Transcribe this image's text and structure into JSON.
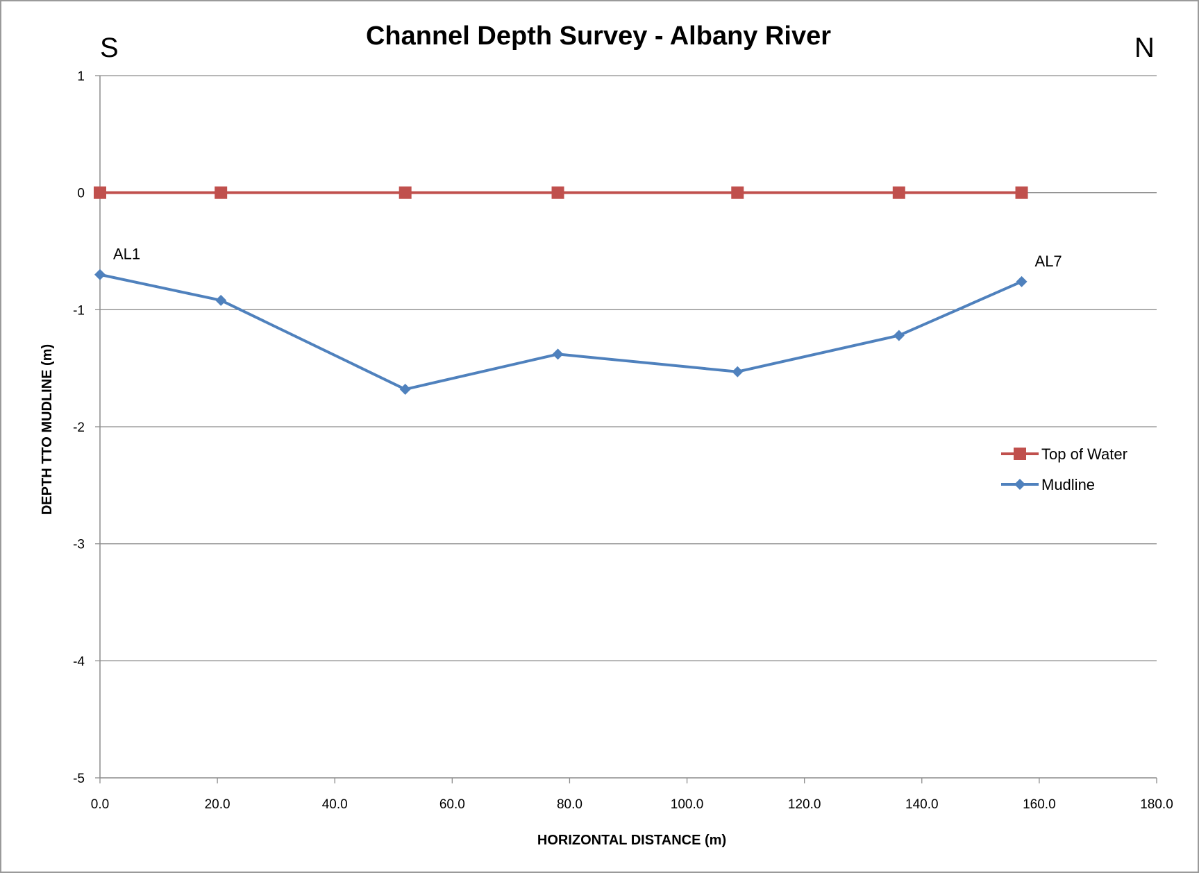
{
  "chart_data": {
    "type": "line",
    "title": "Channel Depth Survey - Albany River",
    "xlabel": "HORIZONTAL DISTANCE (m)",
    "ylabel": "DEPTH TTO MUDLINE (m)",
    "corner_labels": {
      "left": "S",
      "right": "N"
    },
    "xlim": [
      0,
      180
    ],
    "ylim": [
      -5,
      1
    ],
    "x_ticks": [
      0,
      20,
      40,
      60,
      80,
      100,
      120,
      140,
      160,
      180
    ],
    "x_tick_labels": [
      "0.0",
      "20.0",
      "40.0",
      "60.0",
      "80.0",
      "100.0",
      "120.0",
      "140.0",
      "160.0",
      "180.0"
    ],
    "y_ticks": [
      1,
      0,
      -1,
      -2,
      -3,
      -4,
      -5
    ],
    "y_tick_labels": [
      "1",
      "0",
      "-1",
      "-2",
      "-3",
      "-4",
      "-5"
    ],
    "grid": true,
    "legend_position": "right",
    "series": [
      {
        "name": "Top of Water",
        "color": "#c0504d",
        "marker": "square",
        "points": [
          {
            "x": 0,
            "y": 0
          },
          {
            "x": 20.6,
            "y": 0
          },
          {
            "x": 52,
            "y": 0
          },
          {
            "x": 78,
            "y": 0
          },
          {
            "x": 108.6,
            "y": 0
          },
          {
            "x": 136.1,
            "y": 0
          },
          {
            "x": 157,
            "y": 0
          }
        ]
      },
      {
        "name": "Mudline",
        "color": "#4f81bd",
        "marker": "diamond",
        "points": [
          {
            "x": 0,
            "y": -0.7
          },
          {
            "x": 20.6,
            "y": -0.92
          },
          {
            "x": 52,
            "y": -1.68
          },
          {
            "x": 78,
            "y": -1.38
          },
          {
            "x": 108.6,
            "y": -1.53
          },
          {
            "x": 136.1,
            "y": -1.22
          },
          {
            "x": 157,
            "y": -0.76
          }
        ]
      }
    ],
    "annotations": [
      {
        "text": "AL1",
        "x": 0,
        "y": -0.7
      },
      {
        "text": "AL7",
        "x": 157,
        "y": -0.76
      }
    ]
  }
}
